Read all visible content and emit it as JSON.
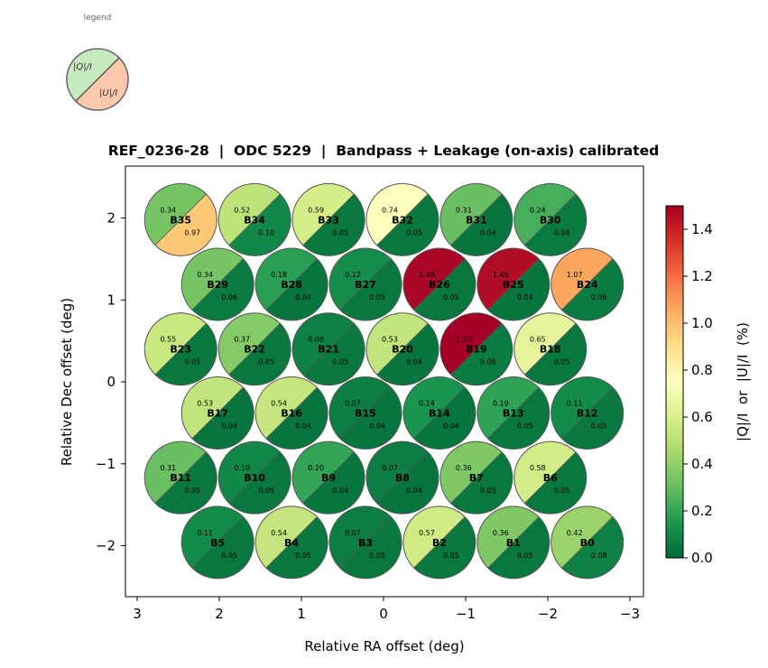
{
  "chart_data": {
    "type": "scatter",
    "title": "REF_0236-28  |  ODC 5229  |  Bandpass + Leakage (on-axis) calibrated",
    "xlabel": "Relative RA offset (deg)",
    "ylabel": "Relative Dec offset (deg)",
    "xlim": [
      3.14,
      -3.16
    ],
    "ylim": [
      -2.62,
      2.63
    ],
    "xticks": [
      3,
      2,
      1,
      0,
      -1,
      -2,
      -3
    ],
    "xtick_labels": [
      "3",
      "2",
      "1",
      "0",
      "−1",
      "−2",
      "−3"
    ],
    "yticks": [
      2,
      1,
      0,
      -1,
      -2
    ],
    "ytick_labels": [
      "2",
      "1",
      "0",
      "−1",
      "−2"
    ],
    "grid": false,
    "colorbar": {
      "label": "|Q|/I  or  |U|/I  (%)",
      "colormap": "RdYlGn_r",
      "range": [
        0,
        1.5
      ],
      "ticks": [
        0,
        0.2,
        0.4,
        0.6,
        0.8,
        1.0,
        1.2,
        1.4
      ],
      "tick_labels": [
        "0.0",
        "0.2",
        "0.4",
        "0.6",
        "0.8",
        "1.0",
        "1.2",
        "1.4"
      ],
      "stops": [
        "#006837",
        "#1a9850",
        "#66bd63",
        "#a6d96a",
        "#d9ef8b",
        "#ffffbf",
        "#fee08b",
        "#fdae61",
        "#f46d43",
        "#d73027",
        "#a50026"
      ]
    },
    "legend": {
      "title": "legend",
      "placement": "top-left",
      "q_label": "|Q|/I",
      "u_label": "|U|/I",
      "q_color": "#c7e9c0",
      "u_color": "#fdc9ad"
    },
    "beams": [
      {
        "name": "B35",
        "ra": 2.47,
        "dec": 1.98,
        "q": 0.34,
        "u": 0.97,
        "q_text": "0.34",
        "u_text": "0.97"
      },
      {
        "name": "B34",
        "ra": 1.57,
        "dec": 1.98,
        "q": 0.52,
        "u": 0.1,
        "q_text": "0.52",
        "u_text": "0.10"
      },
      {
        "name": "B33",
        "ra": 0.67,
        "dec": 1.98,
        "q": 0.59,
        "u": 0.05,
        "q_text": "0.59",
        "u_text": "0.05"
      },
      {
        "name": "B32",
        "ra": -0.23,
        "dec": 1.98,
        "q": 0.74,
        "u": 0.05,
        "q_text": "0.74",
        "u_text": "0.05"
      },
      {
        "name": "B31",
        "ra": -1.13,
        "dec": 1.98,
        "q": 0.31,
        "u": 0.04,
        "q_text": "0.31",
        "u_text": "0.04"
      },
      {
        "name": "B30",
        "ra": -2.03,
        "dec": 1.98,
        "q": 0.24,
        "u": 0.06,
        "q_text": "0.24",
        "u_text": "0.06"
      },
      {
        "name": "B29",
        "ra": 2.02,
        "dec": 1.19,
        "q": 0.34,
        "u": 0.06,
        "q_text": "0.34",
        "u_text": "0.06"
      },
      {
        "name": "B28",
        "ra": 1.12,
        "dec": 1.19,
        "q": 0.18,
        "u": 0.04,
        "q_text": "0.18",
        "u_text": "0.04"
      },
      {
        "name": "B27",
        "ra": 0.22,
        "dec": 1.19,
        "q": 0.12,
        "u": 0.05,
        "q_text": "0.12",
        "u_text": "0.05"
      },
      {
        "name": "B26",
        "ra": -0.68,
        "dec": 1.19,
        "q": 1.48,
        "u": 0.05,
        "q_text": "1.48",
        "u_text": "0.05"
      },
      {
        "name": "B25",
        "ra": -1.58,
        "dec": 1.19,
        "q": 1.46,
        "u": 0.04,
        "q_text": "1.46",
        "u_text": "0.04"
      },
      {
        "name": "B24",
        "ra": -2.48,
        "dec": 1.19,
        "q": 1.07,
        "u": 0.06,
        "q_text": "1.07",
        "u_text": "0.06"
      },
      {
        "name": "B23",
        "ra": 2.47,
        "dec": 0.4,
        "q": 0.55,
        "u": 0.05,
        "q_text": "0.55",
        "u_text": "0.05"
      },
      {
        "name": "B22",
        "ra": 1.57,
        "dec": 0.4,
        "q": 0.37,
        "u": 0.05,
        "q_text": "0.37",
        "u_text": "0.05"
      },
      {
        "name": "B21",
        "ra": 0.67,
        "dec": 0.4,
        "q": 0.08,
        "u": 0.05,
        "q_text": "0.08",
        "u_text": "0.05"
      },
      {
        "name": "B20",
        "ra": -0.23,
        "dec": 0.4,
        "q": 0.53,
        "u": 0.04,
        "q_text": "0.53",
        "u_text": "0.04"
      },
      {
        "name": "B19",
        "ra": -1.13,
        "dec": 0.4,
        "q": 1.53,
        "u": 0.06,
        "q_text": "1.53",
        "u_text": "0.06"
      },
      {
        "name": "B18",
        "ra": -2.03,
        "dec": 0.4,
        "q": 0.65,
        "u": 0.05,
        "q_text": "0.65",
        "u_text": "0.05"
      },
      {
        "name": "B17",
        "ra": 2.02,
        "dec": -0.38,
        "q": 0.53,
        "u": 0.04,
        "q_text": "0.53",
        "u_text": "0.04"
      },
      {
        "name": "B16",
        "ra": 1.12,
        "dec": -0.38,
        "q": 0.54,
        "u": 0.04,
        "q_text": "0.54",
        "u_text": "0.04"
      },
      {
        "name": "B15",
        "ra": 0.22,
        "dec": -0.38,
        "q": 0.07,
        "u": 0.04,
        "q_text": "0.07",
        "u_text": "0.04"
      },
      {
        "name": "B14",
        "ra": -0.68,
        "dec": -0.38,
        "q": 0.14,
        "u": 0.04,
        "q_text": "0.14",
        "u_text": "0.04"
      },
      {
        "name": "B13",
        "ra": -1.58,
        "dec": -0.38,
        "q": 0.19,
        "u": 0.05,
        "q_text": "0.19",
        "u_text": "0.05"
      },
      {
        "name": "B12",
        "ra": -2.48,
        "dec": -0.38,
        "q": 0.11,
        "u": 0.05,
        "q_text": "0.11",
        "u_text": "0.05"
      },
      {
        "name": "B11",
        "ra": 2.47,
        "dec": -1.17,
        "q": 0.31,
        "u": 0.05,
        "q_text": "0.31",
        "u_text": "0.05"
      },
      {
        "name": "B10",
        "ra": 1.57,
        "dec": -1.17,
        "q": 0.1,
        "u": 0.05,
        "q_text": "0.10",
        "u_text": "0.05"
      },
      {
        "name": "B9",
        "ra": 0.67,
        "dec": -1.17,
        "q": 0.2,
        "u": 0.04,
        "q_text": "0.20",
        "u_text": "0.04"
      },
      {
        "name": "B8",
        "ra": -0.23,
        "dec": -1.17,
        "q": 0.07,
        "u": 0.04,
        "q_text": "0.07",
        "u_text": "0.04"
      },
      {
        "name": "B7",
        "ra": -1.13,
        "dec": -1.17,
        "q": 0.36,
        "u": 0.05,
        "q_text": "0.36",
        "u_text": "0.05"
      },
      {
        "name": "B6",
        "ra": -2.03,
        "dec": -1.17,
        "q": 0.58,
        "u": 0.05,
        "q_text": "0.58",
        "u_text": "0.05"
      },
      {
        "name": "B5",
        "ra": 2.02,
        "dec": -1.96,
        "q": 0.11,
        "u": 0.05,
        "q_text": "0.11",
        "u_text": "0.05"
      },
      {
        "name": "B4",
        "ra": 1.12,
        "dec": -1.96,
        "q": 0.54,
        "u": 0.05,
        "q_text": "0.54",
        "u_text": "0.05"
      },
      {
        "name": "B3",
        "ra": 0.22,
        "dec": -1.96,
        "q": 0.07,
        "u": 0.05,
        "q_text": "0.07",
        "u_text": "0.05"
      },
      {
        "name": "B2",
        "ra": -0.68,
        "dec": -1.96,
        "q": 0.57,
        "u": 0.05,
        "q_text": "0.57",
        "u_text": "0.05"
      },
      {
        "name": "B1",
        "ra": -1.58,
        "dec": -1.96,
        "q": 0.36,
        "u": 0.05,
        "q_text": "0.36",
        "u_text": "0.05"
      },
      {
        "name": "B0",
        "ra": -2.48,
        "dec": -1.96,
        "q": 0.42,
        "u": 0.08,
        "q_text": "0.42",
        "u_text": "0.08"
      }
    ]
  }
}
